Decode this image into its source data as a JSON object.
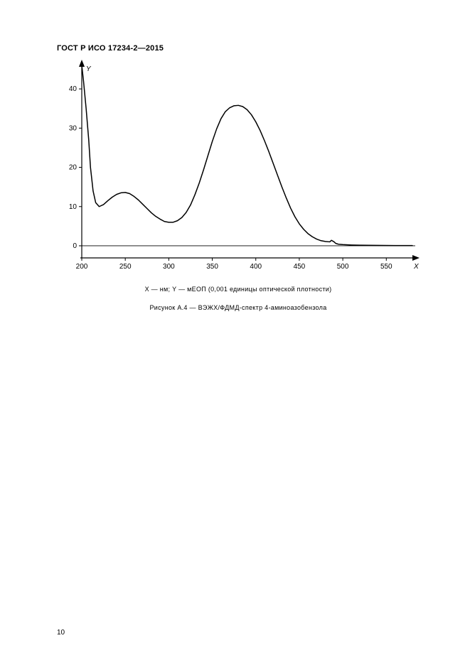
{
  "header": {
    "doc_title": "ГОСТ Р ИСО 17234-2—2015"
  },
  "chart": {
    "type": "line",
    "title": "",
    "x_axis_label": "X",
    "y_axis_label": "Y",
    "xlim": [
      200,
      580
    ],
    "ylim": [
      -2,
      46
    ],
    "xticks": [
      200,
      250,
      300,
      350,
      400,
      450,
      500,
      550
    ],
    "yticks": [
      0,
      10,
      20,
      30,
      40
    ],
    "axis_color": "#000000",
    "line_color": "#000000",
    "line_width": 1.5,
    "tick_fontsize": 10,
    "axis_label_fontsize": 10,
    "axis_label_fontstyle": "italic",
    "background_color": "#ffffff",
    "series": {
      "x": [
        200,
        202,
        205,
        208,
        210,
        213,
        216,
        220,
        225,
        230,
        235,
        240,
        245,
        250,
        255,
        260,
        265,
        270,
        275,
        280,
        285,
        290,
        295,
        300,
        305,
        310,
        315,
        320,
        325,
        330,
        335,
        340,
        345,
        350,
        355,
        360,
        365,
        370,
        375,
        380,
        385,
        390,
        395,
        400,
        405,
        410,
        415,
        420,
        425,
        430,
        435,
        440,
        445,
        450,
        455,
        460,
        465,
        470,
        475,
        480,
        485,
        487,
        490,
        492,
        495,
        500,
        510,
        520,
        530,
        540,
        550,
        560,
        570,
        580
      ],
      "y": [
        46,
        42,
        35,
        27,
        20,
        14,
        11,
        10,
        10.5,
        11.5,
        12.4,
        13.1,
        13.5,
        13.6,
        13.3,
        12.6,
        11.7,
        10.6,
        9.5,
        8.4,
        7.5,
        6.8,
        6.2,
        6.0,
        6.0,
        6.4,
        7.2,
        8.5,
        10.4,
        13.0,
        16.0,
        19.4,
        23.0,
        26.6,
        29.8,
        32.4,
        34.2,
        35.2,
        35.7,
        35.8,
        35.5,
        34.7,
        33.4,
        31.6,
        29.4,
        26.8,
        24.0,
        21.0,
        18.0,
        15.0,
        12.2,
        9.6,
        7.4,
        5.6,
        4.2,
        3.1,
        2.3,
        1.7,
        1.3,
        1.1,
        1.0,
        1.4,
        1.0,
        0.6,
        0.4,
        0.3,
        0.2,
        0.15,
        0.12,
        0.1,
        0.08,
        0.07,
        0.06,
        0.05
      ]
    }
  },
  "captions": {
    "axis_legend": "X — нм; Y — мЕОП (0,001 единицы оптической плотности)",
    "figure_title": "Рисунок А.4 — ВЭЖХ/ФДМД-спектр 4-аминоазобензола"
  },
  "page_number": "10"
}
